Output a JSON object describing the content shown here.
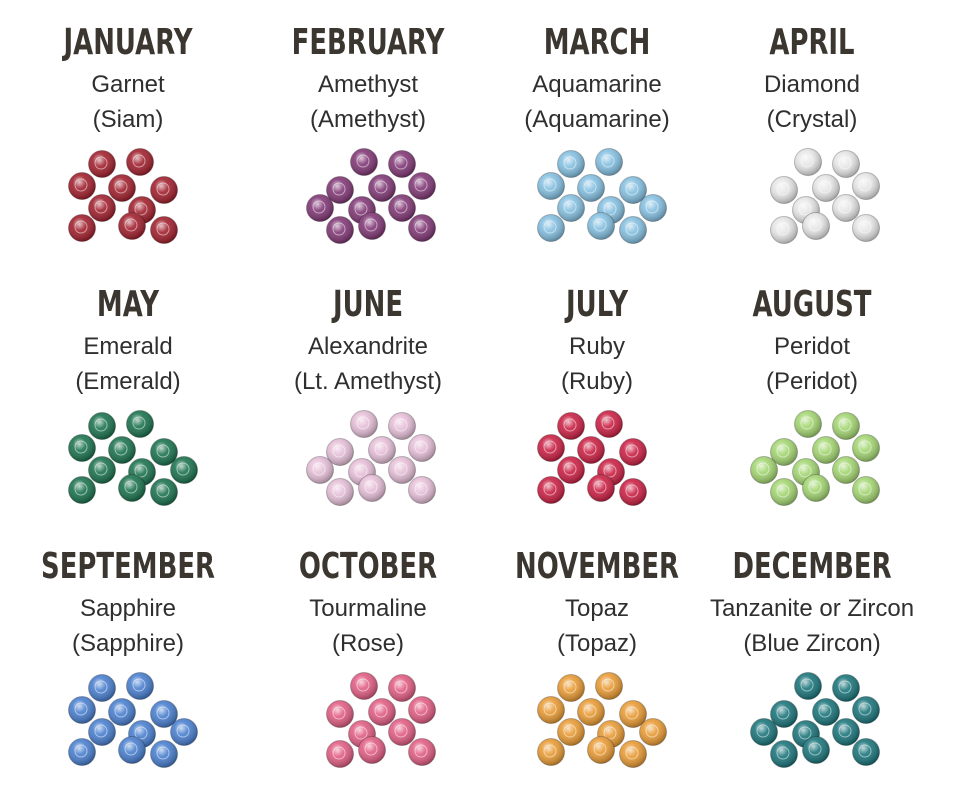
{
  "months": [
    {
      "name": "JANUARY",
      "stone": "Garnet",
      "crystal": "(Siam)"
    },
    {
      "name": "FEBRUARY",
      "stone": "Amethyst",
      "crystal": "(Amethyst)"
    },
    {
      "name": "MARCH",
      "stone": "Aquamarine",
      "crystal": "(Aquamarine)"
    },
    {
      "name": "APRIL",
      "stone": "Diamond",
      "crystal": "(Crystal)"
    },
    {
      "name": "MAY",
      "stone": "Emerald",
      "crystal": "(Emerald)"
    },
    {
      "name": "JUNE",
      "stone": "Alexandrite",
      "crystal": "(Lt. Amethyst)"
    },
    {
      "name": "JULY",
      "stone": "Ruby",
      "crystal": "(Ruby)"
    },
    {
      "name": "AUGUST",
      "stone": "Peridot",
      "crystal": "(Peridot)"
    },
    {
      "name": "SEPTEMBER",
      "stone": "Sapphire",
      "crystal": "(Sapphire)"
    },
    {
      "name": "OCTOBER",
      "stone": "Tourmaline",
      "crystal": "(Rose)"
    },
    {
      "name": "NOVEMBER",
      "stone": "Topaz",
      "crystal": "(Topaz)"
    },
    {
      "name": "DECEMBER",
      "stone": "Tanzanite or Zircon",
      "crystal": "(Blue Zircon)"
    }
  ]
}
